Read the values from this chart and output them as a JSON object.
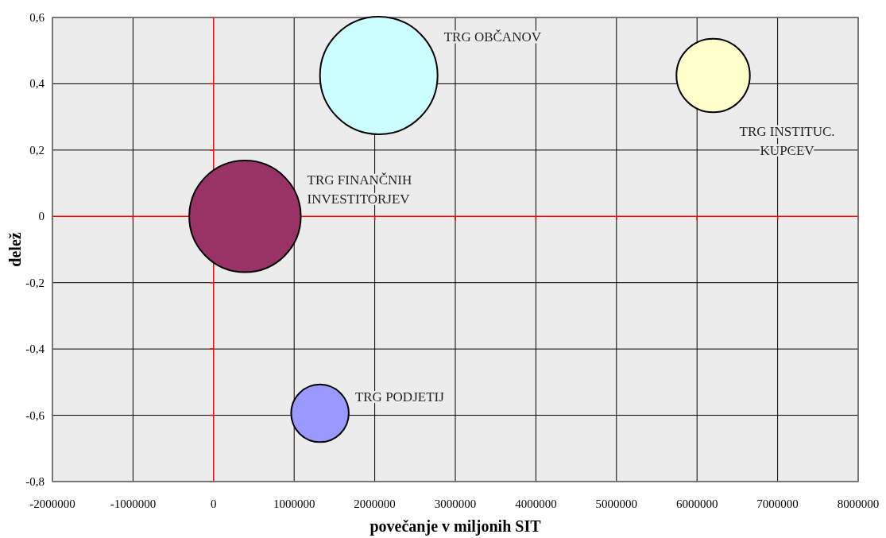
{
  "chart_data": {
    "type": "bubble",
    "xlabel": "povečanje  v miljonih SIT",
    "ylabel": "delež",
    "xlim": [
      -2000000,
      8000000
    ],
    "xticks": [
      -2000000,
      -1000000,
      0,
      1000000,
      2000000,
      3000000,
      4000000,
      5000000,
      6000000,
      7000000,
      8000000
    ],
    "ylim": [
      -0.8,
      0.6
    ],
    "yticks": [
      {
        "value": -0.8,
        "label": "-0,8"
      },
      {
        "value": -0.6,
        "label": "-0,6"
      },
      {
        "value": -0.4,
        "label": "-0,4"
      },
      {
        "value": -0.2,
        "label": "-0,2"
      },
      {
        "value": 0,
        "label": "0"
      },
      {
        "value": 0.2,
        "label": "0,2"
      },
      {
        "value": 0.4,
        "label": "0,4"
      },
      {
        "value": 0.6,
        "label": "0,6"
      }
    ],
    "grid": true,
    "series": [
      {
        "name": "TRG OBČANOV",
        "color": "#ccffff",
        "x": [
          2050000
        ],
        "values": [
          0.425
        ],
        "sizes": [
          1
        ]
      },
      {
        "name": "TRG INSTITUC. KUPCEV",
        "color": "#ffffcc",
        "x": [
          6200000
        ],
        "values": [
          0.425
        ],
        "sizes": [
          0.39
        ]
      },
      {
        "name": "TRG FINANČNIH INVESTITORJEV",
        "color": "#993366",
        "x": [
          390000
        ],
        "values": [
          0
        ],
        "sizes": [
          0.9
        ]
      },
      {
        "name": "TRG PODJETIJ",
        "color": "#9999ff",
        "x": [
          1320000
        ],
        "values": [
          -0.594
        ],
        "sizes": [
          0.24
        ]
      }
    ]
  }
}
